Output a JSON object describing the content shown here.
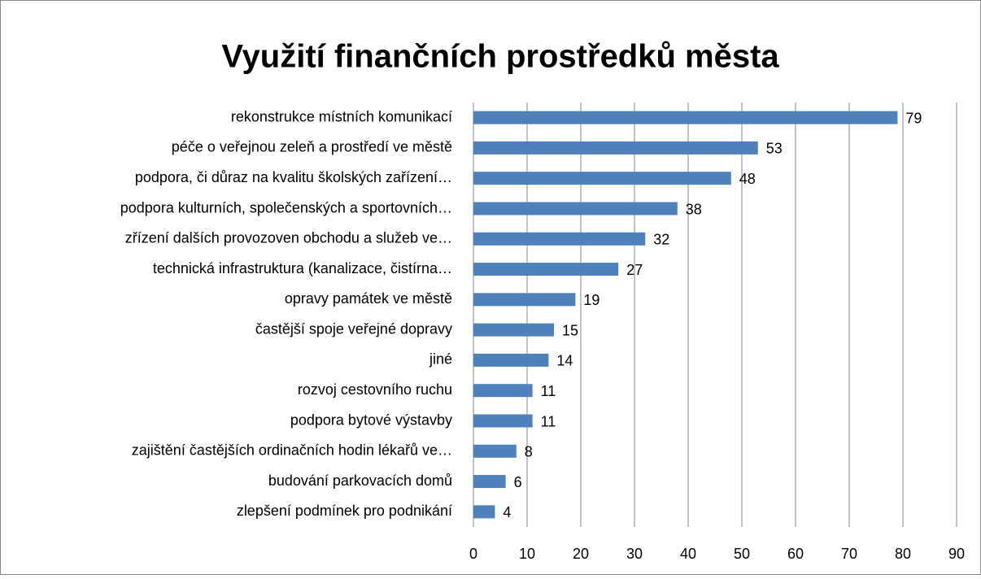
{
  "chart_data": {
    "type": "bar",
    "orientation": "horizontal",
    "title": "Využití finančních prostředků města",
    "categories": [
      "rekonstrukce místních komunikací",
      "péče o veřejnou zeleň a prostředí ve městě",
      "podpora, či důraz na kvalitu školských zařízení…",
      "podpora kulturních, společenských a sportovních…",
      "zřízení dalších provozoven obchodu a služeb ve…",
      "technická infrastruktura (kanalizace, čistírna…",
      "opravy památek ve městě",
      "častější spoje veřejné dopravy",
      "jiné",
      "rozvoj cestovního ruchu",
      "podpora bytové výstavby",
      "zajištění častějších ordinačních hodin lékařů ve…",
      "budování parkovacích domů",
      "zlepšení podmínek pro podnikání"
    ],
    "values": [
      79,
      53,
      48,
      38,
      32,
      27,
      19,
      15,
      14,
      11,
      11,
      8,
      6,
      4
    ],
    "color": "#4f81bd",
    "xlim": [
      0,
      90
    ],
    "xticks": [
      0,
      10,
      20,
      30,
      40,
      50,
      60,
      70,
      80,
      90
    ],
    "grid": true
  }
}
